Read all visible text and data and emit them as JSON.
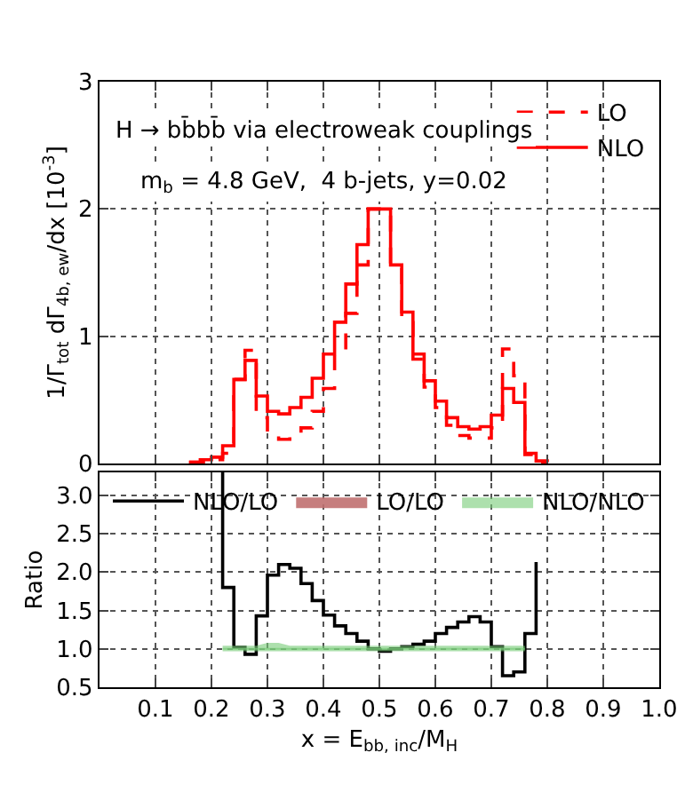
{
  "chart_data": [
    {
      "type": "step",
      "title": "H → bb̄bb̄ via electroweak couplings",
      "subtitle": "m$_{b}$ = 4.8 GeV,  4 b-jets, y=0.02",
      "ylabel": "1/Γ$_{tot}$ dΓ$_{4b, ew}$/dx [10$^{-3}$]",
      "x": [
        0.16,
        0.18,
        0.2,
        0.22,
        0.24,
        0.26,
        0.28,
        0.3,
        0.32,
        0.34,
        0.36,
        0.38,
        0.4,
        0.42,
        0.44,
        0.46,
        0.48,
        0.5,
        0.52,
        0.54,
        0.56,
        0.58,
        0.6,
        0.62,
        0.64,
        0.66,
        0.68,
        0.7,
        0.72,
        0.74,
        0.76,
        0.78,
        0.8
      ],
      "series": [
        {
          "name": "LO",
          "color": "#ff0000",
          "line_style": "dashed",
          "values": [
            0.01,
            0.01,
            0.03,
            0.08,
            0.66,
            0.89,
            0.36,
            0.22,
            0.19,
            0.21,
            0.28,
            0.41,
            0.59,
            0.85,
            1.18,
            1.56,
            2.0,
            1.95,
            1.56,
            1.17,
            0.82,
            0.6,
            0.44,
            0.3,
            0.22,
            0.2,
            0.2,
            0.28,
            0.9,
            0.69,
            0.07,
            0.01,
            0.01
          ]
        },
        {
          "name": "NLO",
          "color": "#ff0000",
          "line_style": "solid",
          "values": [
            0.01,
            0.03,
            0.05,
            0.14,
            0.66,
            0.81,
            0.53,
            0.41,
            0.39,
            0.44,
            0.52,
            0.67,
            0.86,
            1.11,
            1.41,
            1.72,
            2.0,
            2.0,
            1.56,
            1.19,
            0.86,
            0.65,
            0.49,
            0.36,
            0.29,
            0.27,
            0.29,
            0.38,
            0.59,
            0.48,
            0.08,
            0.02,
            0.01
          ]
        }
      ],
      "xlim": [
        0,
        1
      ],
      "xticks": [
        0.1,
        0.2,
        0.3,
        0.4,
        0.5,
        0.6,
        0.7,
        0.8,
        0.9,
        1.0
      ],
      "ylim": [
        0,
        3
      ],
      "yticks": [
        0,
        1,
        2,
        3
      ],
      "tick_labels": "y",
      "grid": true,
      "legend": "top right",
      "marker": "none"
    },
    {
      "type": "line",
      "ylabel": "Ratio",
      "xlabel": "x = E$_{bb, inc}$/M$_{H}$",
      "series": [
        {
          "name": "NLO/LO",
          "type": "step",
          "color": "#000000",
          "x": [
            0.22,
            0.22,
            0.24,
            0.26,
            0.28,
            0.3,
            0.32,
            0.34,
            0.36,
            0.38,
            0.4,
            0.42,
            0.44,
            0.46,
            0.48,
            0.5,
            0.52,
            0.54,
            0.56,
            0.58,
            0.6,
            0.62,
            0.64,
            0.66,
            0.68,
            0.7,
            0.72,
            0.74,
            0.76,
            0.78
          ],
          "values": [
            3.3,
            1.8,
            1.02,
            0.93,
            1.43,
            1.96,
            2.1,
            2.05,
            1.85,
            1.63,
            1.44,
            1.3,
            1.2,
            1.1,
            1.0,
            0.97,
            1.0,
            1.03,
            1.06,
            1.1,
            1.2,
            1.28,
            1.35,
            1.42,
            1.35,
            1.03,
            0.65,
            0.7,
            1.2,
            2.13
          ]
        },
        {
          "name": "LO/LO",
          "color": "#c07070",
          "values": [
            null,
            null,
            null,
            null,
            null,
            null,
            null,
            null,
            null,
            null,
            null,
            null,
            null,
            null,
            null,
            null,
            null,
            null,
            null,
            null,
            null,
            null,
            null,
            null,
            null,
            null,
            null,
            null
          ]
        },
        {
          "name": "NLO/NLO",
          "color": "#77cc77",
          "x": [
            0.22,
            0.24,
            0.26,
            0.28,
            0.3,
            0.32,
            0.34,
            0.36,
            0.38,
            0.4,
            0.42,
            0.44,
            0.46,
            0.48,
            0.5,
            0.52,
            0.54,
            0.56,
            0.58,
            0.6,
            0.62,
            0.64,
            0.66,
            0.68,
            0.7,
            0.72,
            0.74,
            0.76
          ],
          "values": [
            1.0,
            1.0,
            1.0,
            1.0,
            1.0,
            1.0,
            1.0,
            1.0,
            1.0,
            1.0,
            1.0,
            1.0,
            1.0,
            1.0,
            1.0,
            1.0,
            1.0,
            1.0,
            1.0,
            1.0,
            1.0,
            1.0,
            1.0,
            1.0,
            1.0,
            1.0,
            1.0,
            1.0
          ],
          "lower": [
            0.97,
            0.97,
            0.97,
            0.97,
            0.97,
            0.97,
            0.97,
            0.97,
            0.97,
            0.97,
            0.97,
            0.97,
            0.97,
            0.97,
            0.97,
            0.97,
            0.97,
            0.97,
            0.97,
            0.97,
            0.97,
            0.97,
            0.97,
            0.97,
            0.97,
            0.97,
            0.97,
            0.97
          ],
          "upper": [
            1.04,
            1.04,
            1.04,
            1.04,
            1.08,
            1.08,
            1.04,
            1.04,
            1.04,
            1.04,
            1.04,
            1.04,
            1.04,
            1.04,
            1.04,
            1.04,
            1.04,
            1.04,
            1.04,
            1.04,
            1.04,
            1.04,
            1.04,
            1.04,
            1.04,
            1.04,
            1.04,
            1.04
          ]
        }
      ],
      "xlim": [
        0,
        1
      ],
      "xticks": [
        0.1,
        0.2,
        0.3,
        0.4,
        0.5,
        0.6,
        0.7,
        0.8,
        0.9,
        {
          "value": 1,
          "label": "1.0"
        }
      ],
      "ylim": [
        0.5,
        3.3
      ],
      "yticks": [
        0.5,
        {
          "value": 1,
          "label": "1.0"
        },
        1.5,
        {
          "value": 2,
          "label": "2.0"
        },
        2.5,
        {
          "value": 3,
          "label": "3.0"
        }
      ],
      "grid": true,
      "legend": "top",
      "marker": "none"
    }
  ]
}
